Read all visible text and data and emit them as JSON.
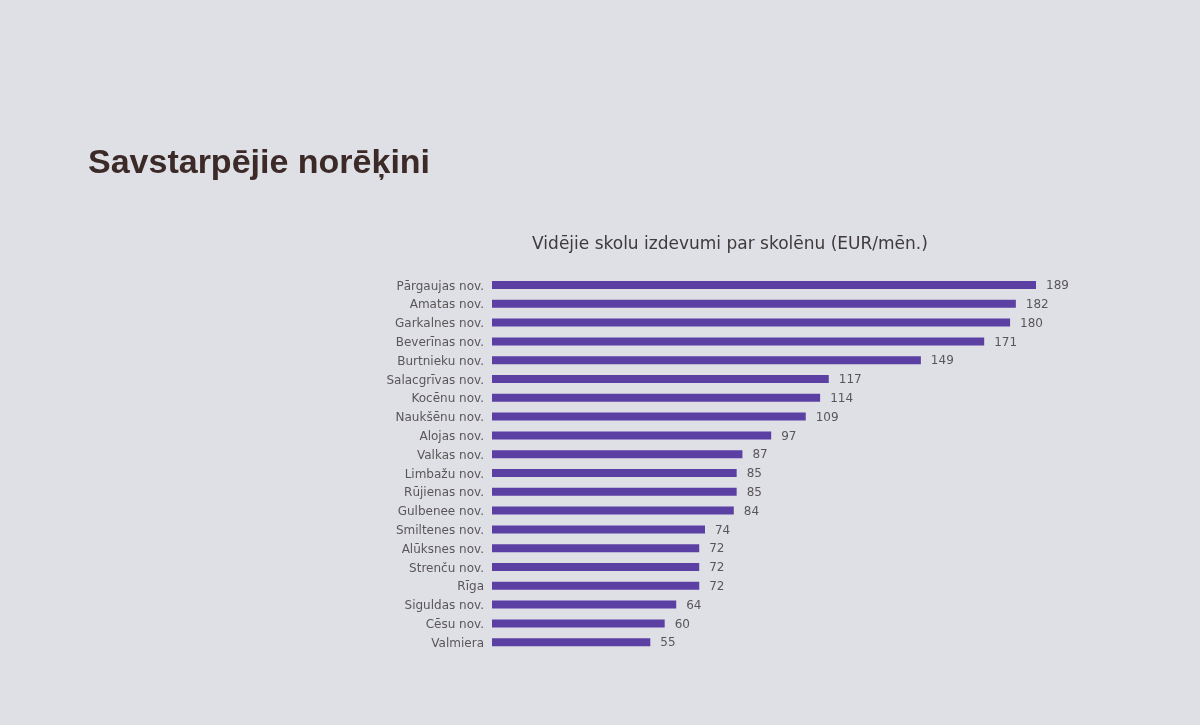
{
  "chart_data": {
    "type": "bar",
    "orientation": "horizontal",
    "title": "Savstarpējie norēķini",
    "subtitle": "Vidējie skolu izdevumi par skolēnu (EUR/mēn.)",
    "categories": [
      "Pārgaujas nov.",
      "Amatas nov.",
      "Garkalnes nov.",
      "Beverīnas nov.",
      "Burtnieku nov.",
      "Salacgrīvas nov.",
      "Kocēnu nov.",
      "Naukšēnu nov.",
      "Alojas nov.",
      "Valkas nov.",
      "Limbažu nov.",
      "Rūjienas nov.",
      "Gulbenee nov.",
      "Smiltenes nov.",
      "Alūksnes nov.",
      "Strenču nov.",
      "Rīga",
      "Siguldas nov.",
      "Cēsu nov.",
      "Valmiera"
    ],
    "values": [
      189,
      182,
      180,
      171,
      149,
      117,
      114,
      109,
      97,
      87,
      85,
      85,
      84,
      74,
      72,
      72,
      72,
      64,
      60,
      55
    ],
    "color": "#5b3fa3",
    "data_labels": true,
    "tick_labels": "y"
  }
}
